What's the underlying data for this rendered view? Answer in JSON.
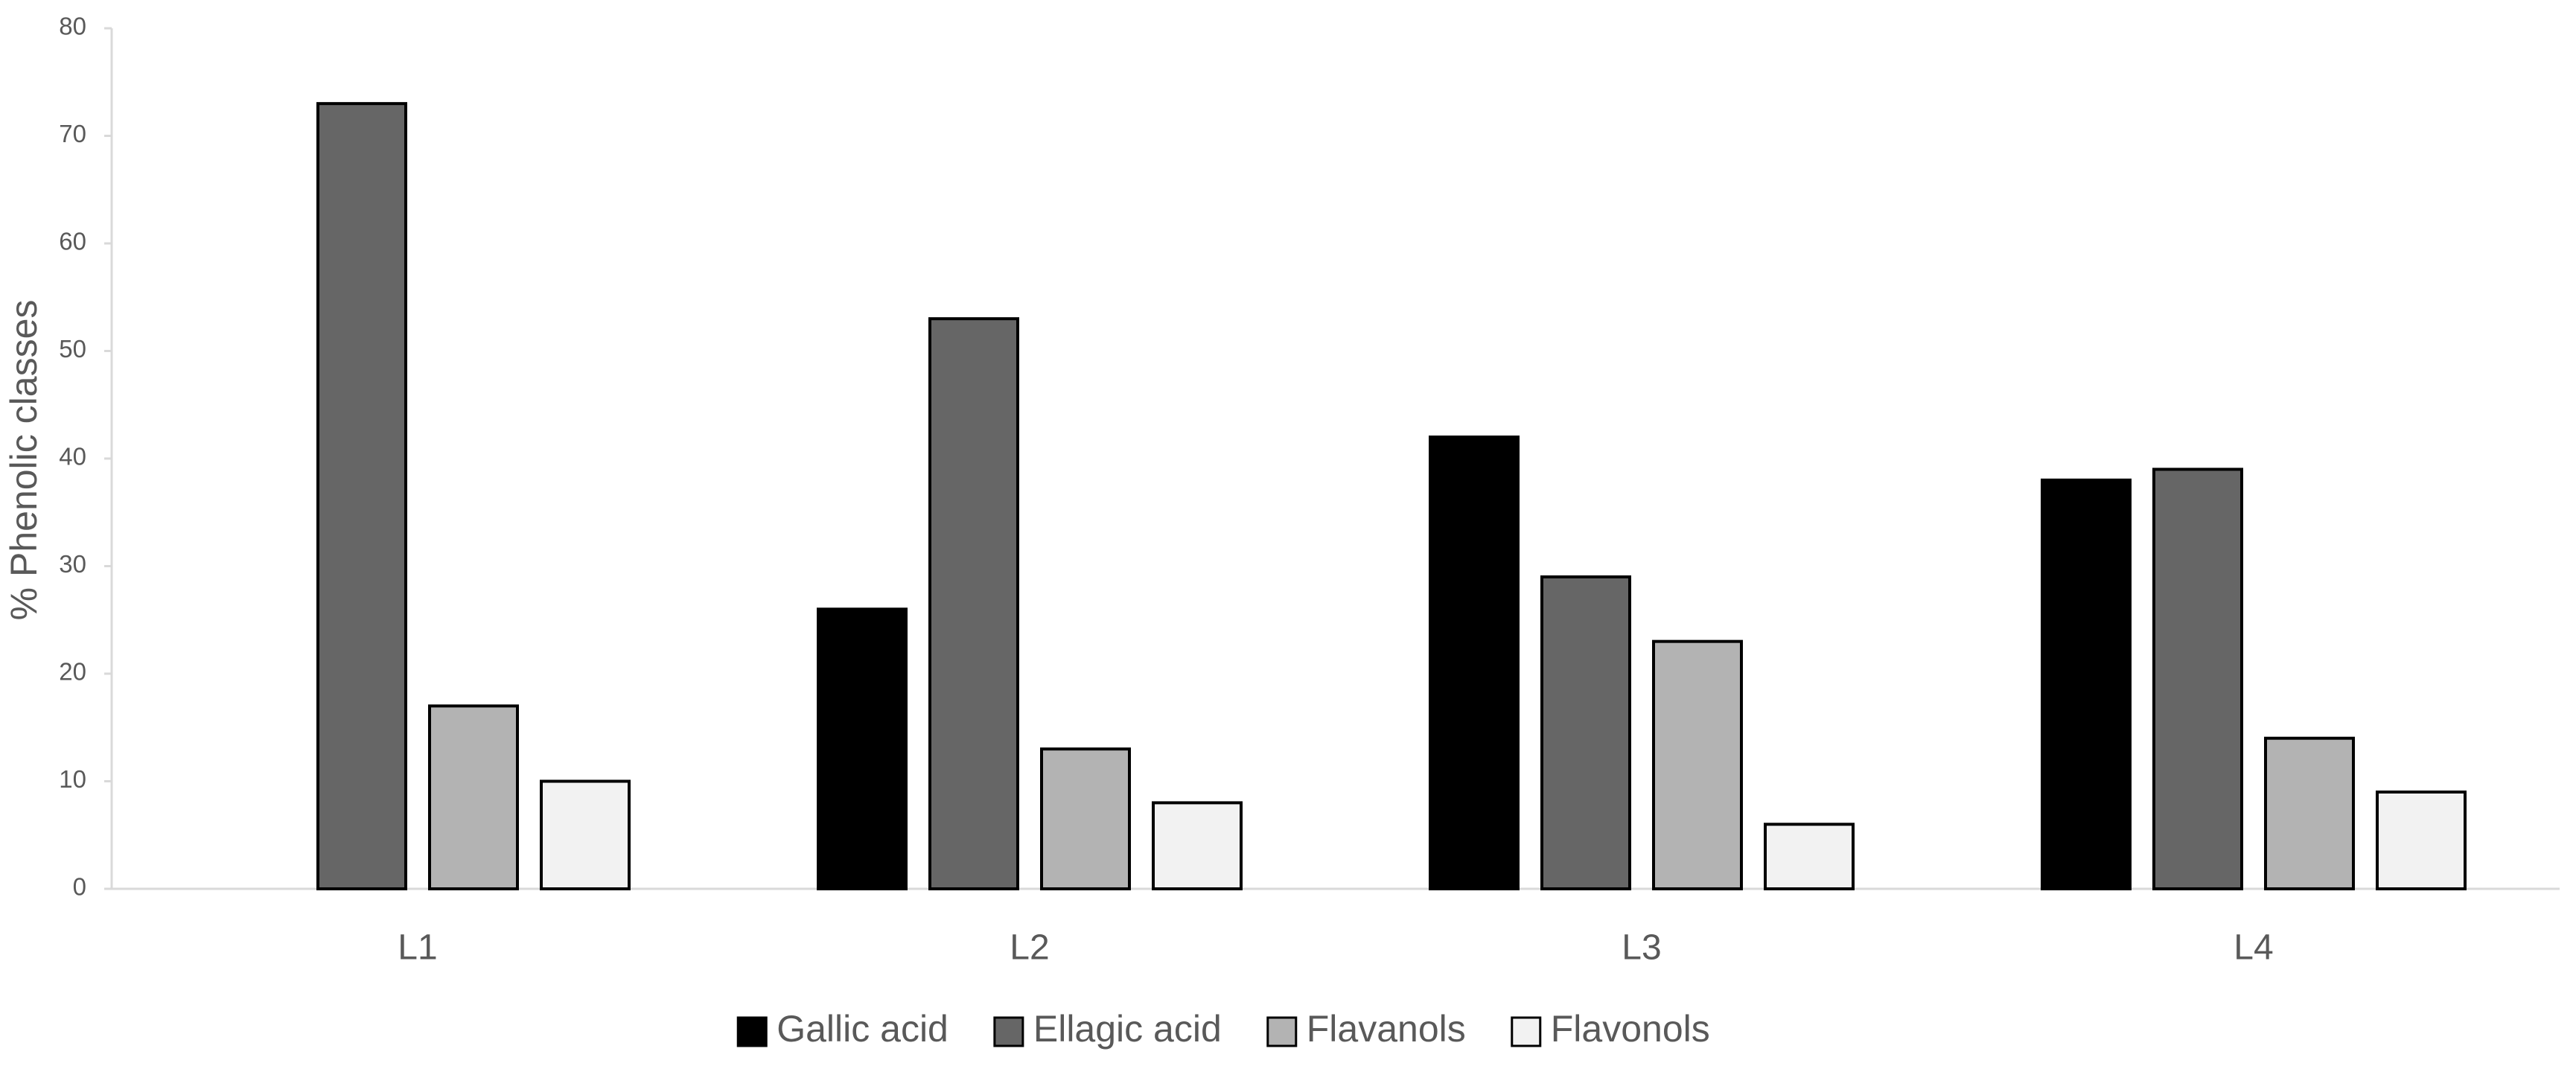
{
  "chart_data": {
    "type": "bar",
    "y_label": "% Phenolic classes",
    "categories": [
      "L1",
      "L2",
      "L3",
      "L4"
    ],
    "series": [
      {
        "name": "Gallic acid",
        "color": "#000000",
        "values": [
          0,
          26,
          42,
          38
        ]
      },
      {
        "name": "Ellagic acid",
        "color": "#666666",
        "values": [
          73,
          53,
          29,
          39
        ]
      },
      {
        "name": "Flavanols",
        "color": "#b3b3b3",
        "values": [
          17,
          13,
          23,
          14
        ]
      },
      {
        "name": "Flavonols",
        "color": "#f2f2f2",
        "values": [
          10,
          8,
          6,
          9
        ]
      }
    ],
    "ylim": [
      0,
      80
    ],
    "yticks": [
      0,
      10,
      20,
      30,
      40,
      50,
      60,
      70,
      80
    ],
    "grid": false,
    "legend": "bottom"
  }
}
